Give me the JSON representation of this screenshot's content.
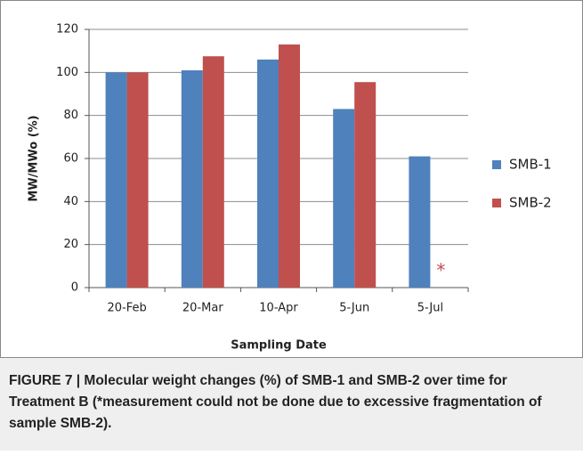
{
  "chart_data": {
    "type": "bar",
    "categories": [
      "20-Feb",
      "20-Mar",
      "10-Apr",
      "5-Jun",
      "5-Jul"
    ],
    "series": [
      {
        "name": "SMB-1",
        "color": "#4f81bd",
        "values": [
          100,
          101,
          106,
          83,
          61
        ]
      },
      {
        "name": "SMB-2",
        "color": "#c0504d",
        "values": [
          100,
          107.5,
          113,
          95.5,
          null
        ]
      }
    ],
    "ylim": [
      0,
      120
    ],
    "yticks": [
      0,
      20,
      40,
      60,
      80,
      100,
      120
    ],
    "grid": true,
    "ylabel": "MW/MWo (%)",
    "xlabel": "Sampling Date",
    "legend": "right",
    "annotation": "*"
  },
  "caption": "FIGURE 7 | Molecular weight changes (%) of SMB-1 and SMB-2 over time for Treatment B (*measurement could not be done due to excessive fragmentation of sample SMB-2)."
}
